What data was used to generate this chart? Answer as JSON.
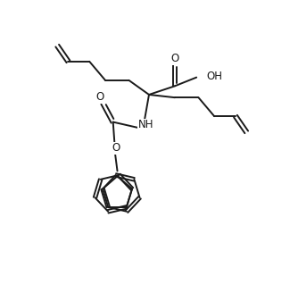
{
  "background": "#ffffff",
  "line_color": "#1a1a1a",
  "line_width": 1.4,
  "font_size": 8.5,
  "figsize": [
    3.34,
    3.28
  ],
  "dpi": 100,
  "xlim": [
    0,
    10
  ],
  "ylim": [
    0,
    10
  ]
}
